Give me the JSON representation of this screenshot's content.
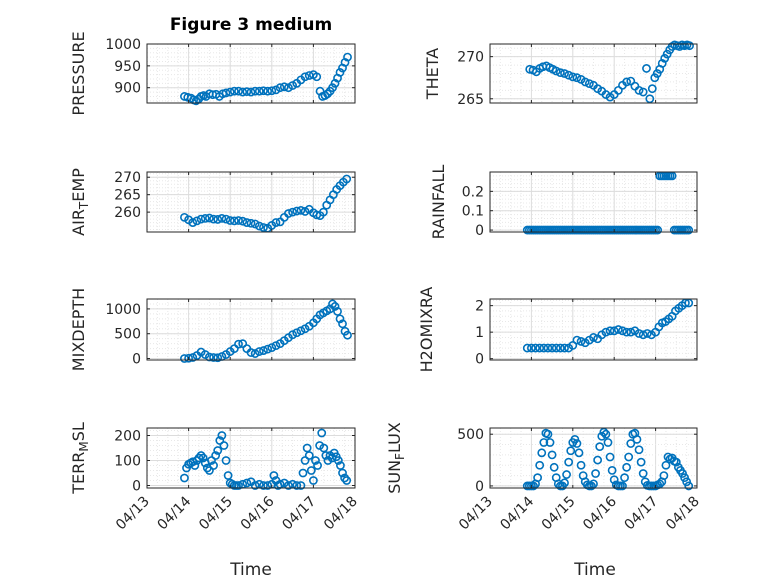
{
  "figure": {
    "title": "Figure 3 medium",
    "marker_color": "#0072BD"
  },
  "chart_data": [
    {
      "type": "scatter",
      "name": "PRESSURE",
      "ylabel": "PRESSURE",
      "ylim": [
        865,
        1000
      ],
      "yticks": [
        900,
        950,
        1000
      ],
      "ytick_labels": [
        "900",
        "950",
        "1000"
      ],
      "xlim": [
        13,
        18
      ],
      "xticks": [
        13,
        14,
        15,
        16,
        17,
        18
      ],
      "xtick_labels": [
        "04/13",
        "04/14",
        "04/15",
        "04/16",
        "04/17",
        "04/18"
      ],
      "grid": true,
      "x": [
        13.9,
        13.98,
        14.06,
        14.12,
        14.18,
        14.24,
        14.3,
        14.36,
        14.42,
        14.5,
        14.58,
        14.66,
        14.74,
        14.82,
        14.9,
        15.0,
        15.1,
        15.2,
        15.3,
        15.4,
        15.5,
        15.6,
        15.7,
        15.8,
        15.9,
        16.0,
        16.1,
        16.2,
        16.3,
        16.4,
        16.5,
        16.6,
        16.7,
        16.8,
        16.9,
        17.0,
        17.08,
        17.16,
        17.22,
        17.28,
        17.34,
        17.4,
        17.46,
        17.52,
        17.58,
        17.64,
        17.7,
        17.76,
        17.82
      ],
      "y": [
        880,
        878,
        876,
        872,
        870,
        874,
        880,
        882,
        880,
        886,
        884,
        885,
        880,
        886,
        888,
        890,
        892,
        892,
        890,
        891,
        890,
        892,
        892,
        893,
        892,
        893,
        895,
        900,
        902,
        900,
        905,
        910,
        918,
        925,
        928,
        930,
        925,
        892,
        880,
        882,
        886,
        892,
        900,
        910,
        922,
        935,
        945,
        958,
        970
      ]
    },
    {
      "type": "scatter",
      "name": "THETA",
      "ylabel": "THETA",
      "ylim": [
        264.5,
        271.5
      ],
      "yticks": [
        265,
        270
      ],
      "ytick_labels": [
        "265",
        "270"
      ],
      "xlim": [
        13,
        18
      ],
      "xticks": [
        13,
        14,
        15,
        16,
        17,
        18
      ],
      "xtick_labels": [
        "04/13",
        "04/14",
        "04/15",
        "04/16",
        "04/17",
        "04/18"
      ],
      "grid": true,
      "x": [
        13.96,
        14.04,
        14.12,
        14.2,
        14.28,
        14.36,
        14.44,
        14.52,
        14.6,
        14.7,
        14.8,
        14.9,
        15.0,
        15.1,
        15.2,
        15.3,
        15.4,
        15.5,
        15.6,
        15.7,
        15.8,
        15.9,
        16.0,
        16.1,
        16.2,
        16.3,
        16.4,
        16.5,
        16.6,
        16.7,
        16.78,
        16.86,
        16.92,
        16.98,
        17.04,
        17.1,
        17.16,
        17.22,
        17.28,
        17.34,
        17.4,
        17.46,
        17.52,
        17.58,
        17.64,
        17.7,
        17.76,
        17.82
      ],
      "y": [
        268.5,
        268.4,
        268.2,
        268.6,
        268.8,
        268.9,
        268.7,
        268.5,
        268.3,
        268.1,
        268.0,
        267.8,
        267.6,
        267.5,
        267.3,
        267.0,
        266.8,
        266.6,
        266.2,
        265.9,
        265.5,
        265.2,
        265.5,
        266.0,
        266.6,
        267.0,
        267.1,
        266.5,
        266.0,
        265.8,
        268.6,
        265.0,
        266.2,
        267.5,
        268.0,
        268.5,
        269.2,
        269.8,
        270.3,
        270.8,
        271.2,
        271.4,
        271.3,
        271.2,
        271.4,
        271.3,
        271.4,
        271.3
      ]
    },
    {
      "type": "scatter",
      "name": "AIR_TEMP",
      "ylabel": "AIR_TEMP",
      "ylim": [
        254.3,
        271.5
      ],
      "yticks": [
        260,
        265,
        270
      ],
      "ytick_labels": [
        "260",
        "265",
        "270"
      ],
      "xlim": [
        13,
        18
      ],
      "xticks": [
        13,
        14,
        15,
        16,
        17,
        18
      ],
      "xtick_labels": [
        "04/13",
        "04/14",
        "04/15",
        "04/16",
        "04/17",
        "04/18"
      ],
      "grid": true,
      "x": [
        13.9,
        14.0,
        14.1,
        14.2,
        14.3,
        14.4,
        14.5,
        14.6,
        14.7,
        14.8,
        14.9,
        15.0,
        15.1,
        15.2,
        15.3,
        15.4,
        15.5,
        15.6,
        15.7,
        15.8,
        15.9,
        16.0,
        16.1,
        16.2,
        16.3,
        16.4,
        16.5,
        16.6,
        16.7,
        16.8,
        16.9,
        17.0,
        17.08,
        17.16,
        17.24,
        17.32,
        17.4,
        17.48,
        17.56,
        17.64,
        17.72,
        17.8
      ],
      "y": [
        258.5,
        257.8,
        257.0,
        257.5,
        258.0,
        258.2,
        258.3,
        258.0,
        257.9,
        258.2,
        258.0,
        257.6,
        257.5,
        257.6,
        257.4,
        257.0,
        256.8,
        256.6,
        256.0,
        255.6,
        255.4,
        256.2,
        257.0,
        257.2,
        258.5,
        259.6,
        260.0,
        260.3,
        260.5,
        260.2,
        260.8,
        259.8,
        259.2,
        259.0,
        260.0,
        262.0,
        263.5,
        265.0,
        266.5,
        267.6,
        268.6,
        269.5
      ]
    },
    {
      "type": "scatter",
      "name": "RAINFALL",
      "ylabel": "RAINFALL",
      "ylim": [
        -0.01,
        0.3
      ],
      "yticks": [
        0,
        0.1,
        0.2
      ],
      "ytick_labels": [
        "0",
        "0.1",
        "0.2"
      ],
      "xlim": [
        13,
        18
      ],
      "xticks": [
        13,
        14,
        15,
        16,
        17,
        18
      ],
      "xtick_labels": [
        "04/13",
        "04/14",
        "04/15",
        "04/16",
        "04/17",
        "04/18"
      ],
      "grid": true,
      "x": [
        13.9,
        13.95,
        14.0,
        14.05,
        14.1,
        14.15,
        14.2,
        14.25,
        14.3,
        14.35,
        14.4,
        14.45,
        14.5,
        14.55,
        14.6,
        14.65,
        14.7,
        14.75,
        14.8,
        14.85,
        14.9,
        14.95,
        15.0,
        15.05,
        15.1,
        15.15,
        15.2,
        15.25,
        15.3,
        15.35,
        15.4,
        15.45,
        15.5,
        15.55,
        15.6,
        15.65,
        15.7,
        15.75,
        15.8,
        15.85,
        15.9,
        15.95,
        16.0,
        16.05,
        16.1,
        16.15,
        16.2,
        16.25,
        16.3,
        16.35,
        16.4,
        16.45,
        16.5,
        16.55,
        16.6,
        16.65,
        16.7,
        16.75,
        16.8,
        16.85,
        16.9,
        16.95,
        17.0,
        17.05,
        17.1,
        17.15,
        17.2,
        17.25,
        17.3,
        17.35,
        17.4,
        17.45,
        17.5,
        17.55,
        17.6,
        17.65,
        17.7,
        17.75,
        17.8
      ],
      "y": [
        0,
        0,
        0,
        0,
        0,
        0,
        0,
        0,
        0,
        0,
        0,
        0,
        0,
        0,
        0,
        0,
        0,
        0,
        0,
        0,
        0,
        0,
        0,
        0,
        0,
        0,
        0,
        0,
        0,
        0,
        0,
        0,
        0,
        0,
        0,
        0,
        0,
        0,
        0,
        0,
        0,
        0,
        0,
        0,
        0,
        0,
        0,
        0,
        0,
        0,
        0,
        0,
        0,
        0,
        0,
        0,
        0,
        0,
        0,
        0,
        0,
        0,
        0,
        0,
        0.28,
        0.28,
        0.28,
        0.28,
        0.28,
        0.28,
        0.28,
        0,
        0,
        0,
        0,
        0,
        0,
        0,
        0
      ]
    },
    {
      "type": "scatter",
      "name": "MIXDEPTH",
      "ylabel": "MIXDEPTH",
      "ylim": [
        -30,
        1200
      ],
      "yticks": [
        0,
        500,
        1000
      ],
      "ytick_labels": [
        "0",
        "500",
        "1000"
      ],
      "xlim": [
        13,
        18
      ],
      "xticks": [
        13,
        14,
        15,
        16,
        17,
        18
      ],
      "xtick_labels": [
        "04/13",
        "04/14",
        "04/15",
        "04/16",
        "04/17",
        "04/18"
      ],
      "grid": true,
      "x": [
        13.9,
        14.0,
        14.1,
        14.2,
        14.3,
        14.4,
        14.5,
        14.6,
        14.7,
        14.8,
        14.9,
        15.0,
        15.1,
        15.2,
        15.3,
        15.4,
        15.5,
        15.6,
        15.7,
        15.8,
        15.9,
        16.0,
        16.1,
        16.2,
        16.3,
        16.4,
        16.5,
        16.6,
        16.7,
        16.8,
        16.9,
        17.0,
        17.08,
        17.16,
        17.24,
        17.32,
        17.4,
        17.46,
        17.52,
        17.58,
        17.64,
        17.7,
        17.76,
        17.82
      ],
      "y": [
        0,
        5,
        20,
        60,
        130,
        80,
        30,
        20,
        15,
        40,
        80,
        140,
        200,
        290,
        300,
        200,
        120,
        100,
        140,
        160,
        190,
        220,
        260,
        300,
        360,
        420,
        480,
        520,
        560,
        600,
        650,
        720,
        800,
        880,
        920,
        960,
        1000,
        1100,
        1050,
        950,
        800,
        700,
        550,
        470
      ]
    },
    {
      "type": "scatter",
      "name": "H2OMIXRA",
      "ylabel": "H2OMIXRA",
      "ylim": [
        -0.05,
        2.25
      ],
      "yticks": [
        0,
        1,
        2
      ],
      "ytick_labels": [
        "0",
        "1",
        "2"
      ],
      "xlim": [
        13,
        18
      ],
      "xticks": [
        13,
        14,
        15,
        16,
        17,
        18
      ],
      "xtick_labels": [
        "04/13",
        "04/14",
        "04/15",
        "04/16",
        "04/17",
        "04/18"
      ],
      "grid": true,
      "x": [
        13.9,
        14.0,
        14.1,
        14.2,
        14.3,
        14.4,
        14.5,
        14.6,
        14.7,
        14.8,
        14.9,
        15.0,
        15.1,
        15.2,
        15.3,
        15.4,
        15.5,
        15.6,
        15.7,
        15.8,
        15.9,
        16.0,
        16.1,
        16.2,
        16.3,
        16.4,
        16.5,
        16.6,
        16.7,
        16.8,
        16.9,
        17.0,
        17.08,
        17.16,
        17.24,
        17.32,
        17.4,
        17.48,
        17.56,
        17.64,
        17.72,
        17.8
      ],
      "y": [
        0.4,
        0.4,
        0.4,
        0.4,
        0.4,
        0.4,
        0.4,
        0.4,
        0.4,
        0.4,
        0.4,
        0.5,
        0.7,
        0.65,
        0.6,
        0.7,
        0.8,
        0.75,
        0.9,
        1.0,
        1.05,
        1.05,
        1.1,
        1.05,
        1.0,
        1.0,
        1.05,
        0.95,
        0.9,
        0.95,
        0.9,
        1.0,
        1.2,
        1.35,
        1.4,
        1.5,
        1.6,
        1.8,
        1.9,
        2.0,
        2.1,
        2.1
      ]
    },
    {
      "type": "scatter",
      "name": "TERR_MSL",
      "ylabel": "TERR_MSL",
      "ylim": [
        -10,
        230
      ],
      "yticks": [
        0,
        100,
        200
      ],
      "ytick_labels": [
        "0",
        "100",
        "200"
      ],
      "xlim": [
        13,
        18
      ],
      "xticks": [
        13,
        14,
        15,
        16,
        17,
        18
      ],
      "xtick_labels": [
        "04/13",
        "04/14",
        "04/15",
        "04/16",
        "04/17",
        "04/18"
      ],
      "grid": true,
      "x": [
        13.9,
        13.95,
        14.0,
        14.05,
        14.1,
        14.15,
        14.2,
        14.25,
        14.3,
        14.35,
        14.4,
        14.45,
        14.5,
        14.55,
        14.6,
        14.65,
        14.7,
        14.75,
        14.8,
        14.85,
        14.9,
        14.95,
        15.0,
        15.05,
        15.1,
        15.15,
        15.2,
        15.3,
        15.4,
        15.5,
        15.6,
        15.7,
        15.8,
        15.9,
        16.0,
        16.05,
        16.1,
        16.15,
        16.2,
        16.3,
        16.4,
        16.5,
        16.6,
        16.7,
        16.75,
        16.8,
        16.85,
        16.9,
        16.95,
        17.0,
        17.05,
        17.1,
        17.15,
        17.2,
        17.25,
        17.3,
        17.35,
        17.4,
        17.45,
        17.5,
        17.55,
        17.6,
        17.65,
        17.7,
        17.75,
        17.8
      ],
      "y": [
        30,
        70,
        85,
        90,
        95,
        80,
        100,
        110,
        120,
        110,
        90,
        70,
        60,
        100,
        80,
        120,
        140,
        180,
        200,
        160,
        100,
        40,
        10,
        5,
        0,
        0,
        0,
        5,
        10,
        15,
        0,
        5,
        0,
        0,
        5,
        40,
        20,
        0,
        5,
        10,
        0,
        5,
        0,
        0,
        50,
        100,
        150,
        120,
        60,
        20,
        100,
        80,
        160,
        210,
        150,
        120,
        100,
        120,
        110,
        130,
        115,
        100,
        80,
        50,
        30,
        20
      ]
    },
    {
      "type": "scatter",
      "name": "SUN_FLUX",
      "ylabel": "SUN_FLUX",
      "ylim": [
        -20,
        560
      ],
      "yticks": [
        0,
        500
      ],
      "ytick_labels": [
        "0",
        "500"
      ],
      "xlim": [
        13,
        18
      ],
      "xticks": [
        13,
        14,
        15,
        16,
        17,
        18
      ],
      "xtick_labels": [
        "04/13",
        "04/14",
        "04/15",
        "04/16",
        "04/17",
        "04/18"
      ],
      "grid": true,
      "x": [
        13.9,
        13.95,
        14.0,
        14.05,
        14.1,
        14.15,
        14.2,
        14.25,
        14.3,
        14.35,
        14.4,
        14.45,
        14.5,
        14.55,
        14.6,
        14.65,
        14.7,
        14.75,
        14.8,
        14.85,
        14.9,
        14.95,
        15.0,
        15.05,
        15.1,
        15.15,
        15.2,
        15.25,
        15.3,
        15.35,
        15.4,
        15.45,
        15.5,
        15.55,
        15.6,
        15.65,
        15.7,
        15.75,
        15.8,
        15.85,
        15.9,
        15.95,
        16.0,
        16.05,
        16.1,
        16.15,
        16.2,
        16.25,
        16.3,
        16.35,
        16.4,
        16.45,
        16.5,
        16.55,
        16.6,
        16.65,
        16.7,
        16.75,
        16.8,
        16.85,
        16.9,
        16.95,
        17.0,
        17.05,
        17.1,
        17.15,
        17.2,
        17.25,
        17.3,
        17.35,
        17.4,
        17.45,
        17.5,
        17.55,
        17.6,
        17.65,
        17.7,
        17.75,
        17.8
      ],
      "y": [
        0,
        0,
        0,
        0,
        20,
        80,
        200,
        320,
        420,
        510,
        500,
        420,
        300,
        180,
        80,
        20,
        0,
        0,
        30,
        110,
        230,
        340,
        420,
        450,
        410,
        320,
        200,
        100,
        40,
        10,
        0,
        0,
        20,
        120,
        250,
        380,
        480,
        520,
        500,
        420,
        280,
        150,
        60,
        10,
        0,
        0,
        0,
        80,
        180,
        280,
        410,
        500,
        510,
        450,
        350,
        230,
        120,
        40,
        5,
        0,
        0,
        0,
        0,
        10,
        20,
        40,
        100,
        200,
        280,
        260,
        270,
        240,
        230,
        180,
        150,
        120,
        80,
        40,
        0
      ]
    }
  ],
  "xlabel_left": "Time",
  "xlabel_right": "Time"
}
